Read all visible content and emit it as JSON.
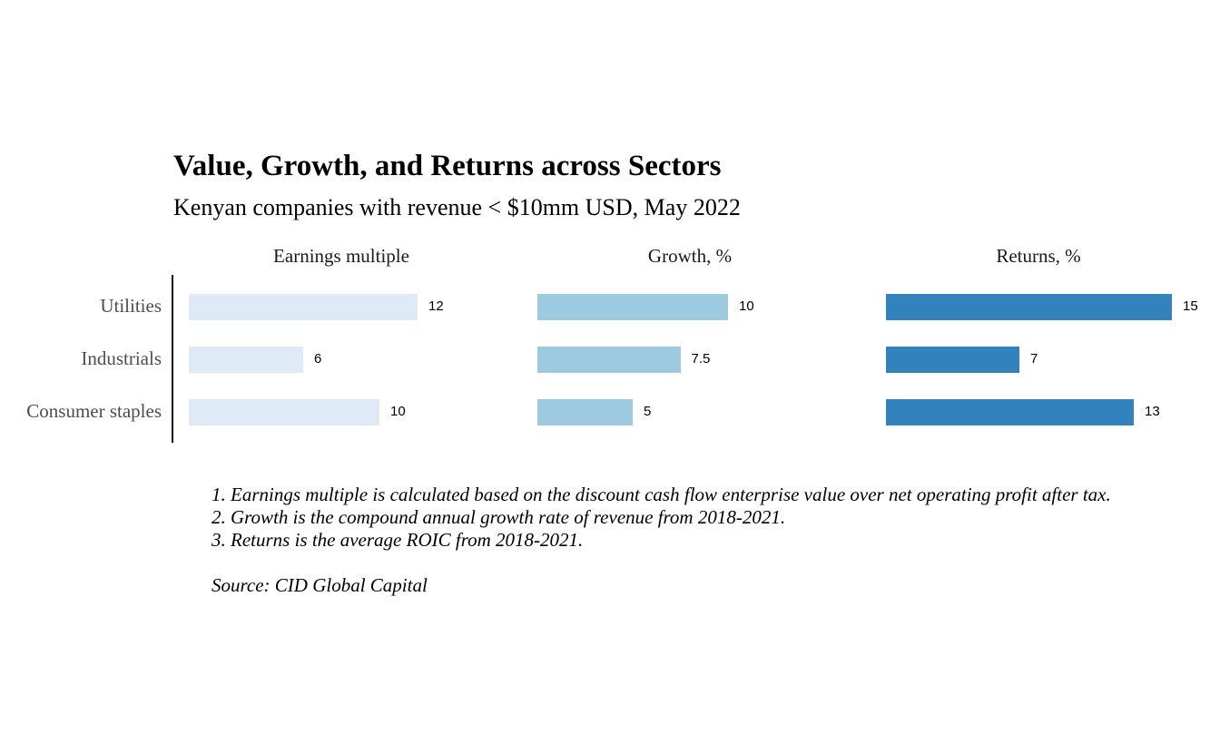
{
  "chart_data": {
    "type": "bar",
    "orientation": "horizontal",
    "title": "Value, Growth, and Returns across Sectors",
    "subtitle": "Kenyan companies with revenue < $10mm USD, May 2022",
    "categories": [
      "Utilities",
      "Industrials",
      "Consumer staples"
    ],
    "series": [
      {
        "name": "Earnings multiple",
        "values": [
          12,
          6,
          10
        ],
        "labels": [
          "12",
          "6",
          "10"
        ],
        "color": "#deebf7",
        "xlim": [
          0,
          16
        ]
      },
      {
        "name": "Growth, %",
        "values": [
          10,
          7.5,
          5
        ],
        "labels": [
          "10",
          "7.5",
          "5"
        ],
        "color": "#9ecae1",
        "xlim": [
          0,
          16
        ]
      },
      {
        "name": "Returns, %",
        "values": [
          15,
          7,
          13
        ],
        "labels": [
          "15",
          "7",
          "13"
        ],
        "color": "#3182bd",
        "xlim": [
          0,
          16
        ]
      }
    ],
    "grid": false,
    "notes": [
      "1. Earnings multiple is calculated based on the discount cash flow enterprise value over net operating profit after tax.",
      "2. Growth is the compound annual growth rate of revenue from 2018-2021.",
      "3. Returns is the average ROIC from 2018-2021."
    ],
    "source": "Source: CID Global Capital"
  }
}
